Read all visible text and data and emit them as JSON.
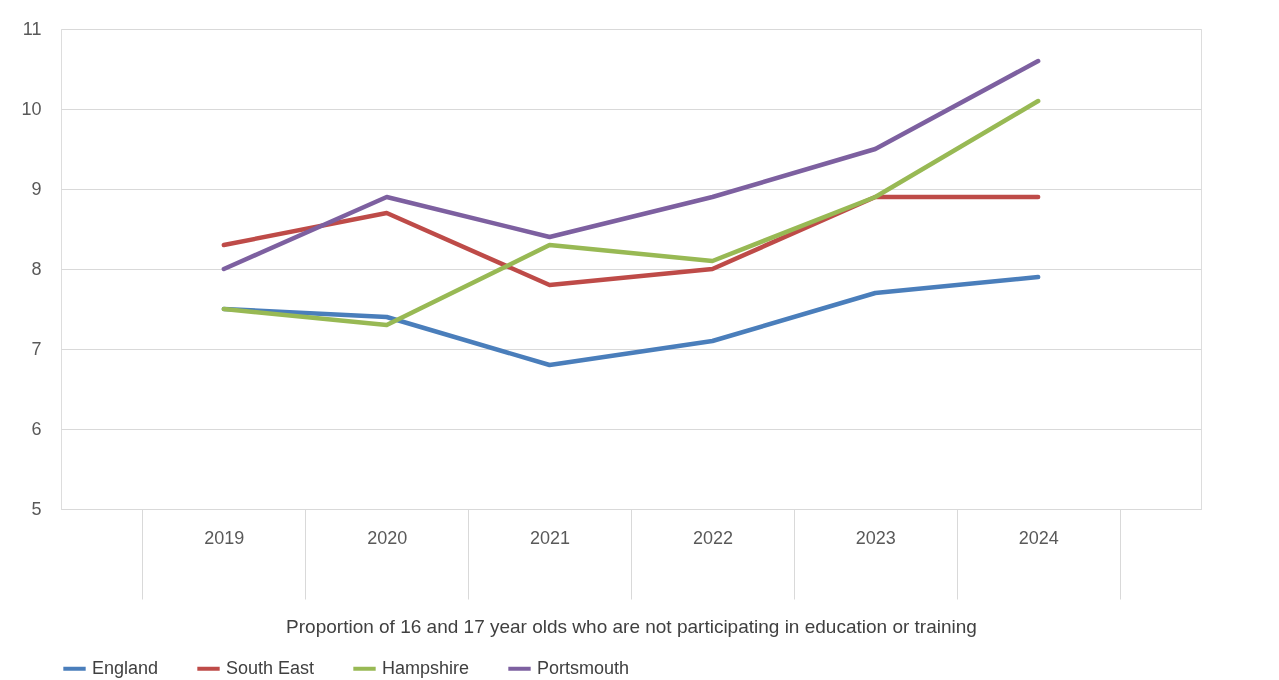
{
  "chart_data": {
    "type": "line",
    "xlabel": "Proportion of 16 and 17 year olds who are not participating in education or training",
    "categories": [
      "2019",
      "2020",
      "2021",
      "2022",
      "2023",
      "2024"
    ],
    "series": [
      {
        "name": "England",
        "color": "#4a7ebb",
        "values": [
          7.5,
          7.4,
          6.8,
          7.1,
          7.7,
          7.9
        ]
      },
      {
        "name": "South East",
        "color": "#be4b48",
        "values": [
          8.3,
          8.7,
          7.8,
          8.0,
          8.9,
          8.9
        ]
      },
      {
        "name": "Hampshire",
        "color": "#98b954",
        "values": [
          7.5,
          7.3,
          8.3,
          8.1,
          8.9,
          10.1
        ]
      },
      {
        "name": "Portsmouth",
        "color": "#7d60a0",
        "values": [
          8.0,
          8.9,
          8.4,
          8.9,
          9.5,
          10.6
        ]
      }
    ],
    "ylim": [
      5,
      11
    ],
    "yticks": [
      5,
      6,
      7,
      8,
      9,
      10,
      11
    ],
    "grid": "y",
    "legend": "bottom",
    "marker": "none",
    "line_style": "solid"
  }
}
